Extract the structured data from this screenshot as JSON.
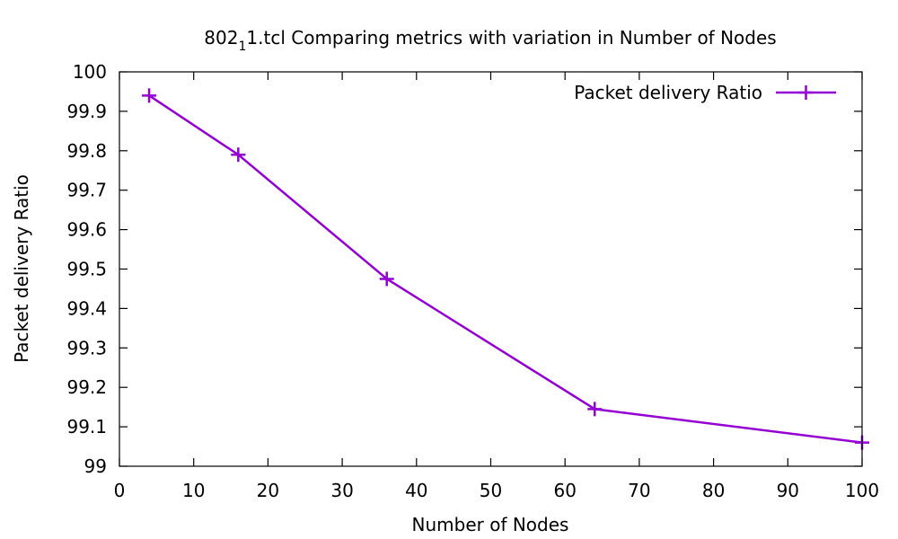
{
  "chart_data": {
    "type": "line",
    "title": {
      "main": "802",
      "sub": "1",
      "rest": "1.tcl Comparing metrics with variation in Number of Nodes"
    },
    "xlabel": "Number of Nodes",
    "ylabel": "Packet delivery Ratio",
    "xlim": [
      0,
      100
    ],
    "ylim": [
      99,
      100
    ],
    "xticks": [
      0,
      10,
      20,
      30,
      40,
      50,
      60,
      70,
      80,
      90,
      100
    ],
    "xtick_labels": [
      "0",
      "10",
      "20",
      "30",
      "40",
      "50",
      "60",
      "70",
      "80",
      "90",
      "100"
    ],
    "yticks": [
      99,
      99.1,
      99.2,
      99.3,
      99.4,
      99.5,
      99.6,
      99.7,
      99.8,
      99.9,
      100
    ],
    "ytick_labels": [
      "99",
      "99.1",
      "99.2",
      "99.3",
      "99.4",
      "99.5",
      "99.6",
      "99.7",
      "99.8",
      "99.9",
      "100"
    ],
    "grid": false,
    "legend_position": "top-right",
    "series": [
      {
        "name": "Packet delivery Ratio",
        "color": "#9400d3",
        "marker": "plus",
        "x": [
          4,
          16,
          36,
          64,
          100
        ],
        "y": [
          99.94,
          99.79,
          99.475,
          99.145,
          99.06
        ]
      }
    ]
  }
}
